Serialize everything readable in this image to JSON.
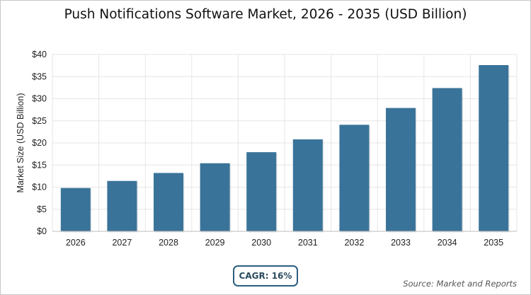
{
  "title": "Push Notifications Software Market, 2026 - 2035 (USD Billion)",
  "cagr_label": "CAGR: 16%",
  "source": "Source: Market and Reports",
  "colors": {
    "bar": "#3a7399",
    "grid": "#e6e6e6",
    "axis": "#555555"
  },
  "chart_data": {
    "type": "bar",
    "title": "Push Notifications Software Market, 2026 - 2035 (USD Billion)",
    "xlabel": "",
    "ylabel": "Market Size (USD Billion)",
    "categories": [
      "2026",
      "2027",
      "2028",
      "2029",
      "2030",
      "2031",
      "2032",
      "2033",
      "2034",
      "2035"
    ],
    "values": [
      9.8,
      11.4,
      13.2,
      15.4,
      17.9,
      20.8,
      24.1,
      27.9,
      32.4,
      37.6
    ],
    "ylim": [
      0,
      40
    ],
    "yticks": [
      0,
      5,
      10,
      15,
      20,
      25,
      30,
      35,
      40
    ],
    "ytick_labels": [
      "$0",
      "$5",
      "$10",
      "$15",
      "$20",
      "$25",
      "$30",
      "$35",
      "$40"
    ],
    "grid": true,
    "legend": "none"
  }
}
